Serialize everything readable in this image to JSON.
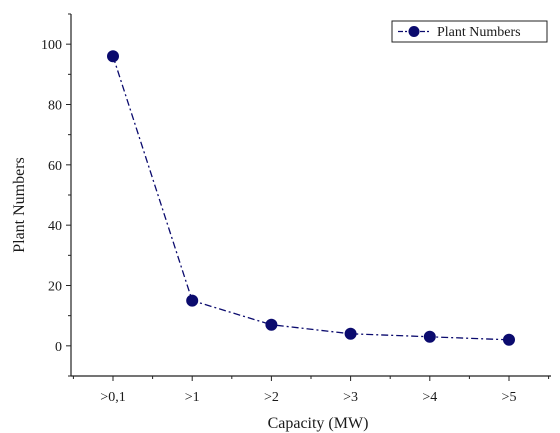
{
  "chart_data": {
    "type": "line",
    "title": "",
    "xlabel": "Capacity (MW)",
    "ylabel": "Plant Numbers",
    "categories": [
      ">0,1",
      ">1",
      ">2",
      ">3",
      ">4",
      ">5"
    ],
    "series": [
      {
        "name": "Plant Numbers",
        "values": [
          96,
          15,
          7,
          4,
          3,
          2
        ],
        "color": "#0b0b6e",
        "line_style": "dash-dot",
        "marker": "filled-circle"
      }
    ],
    "ylim": [
      -10,
      110
    ],
    "yticks": [
      0,
      20,
      40,
      60,
      80,
      100
    ],
    "grid": false,
    "legend_position": "top-right"
  }
}
